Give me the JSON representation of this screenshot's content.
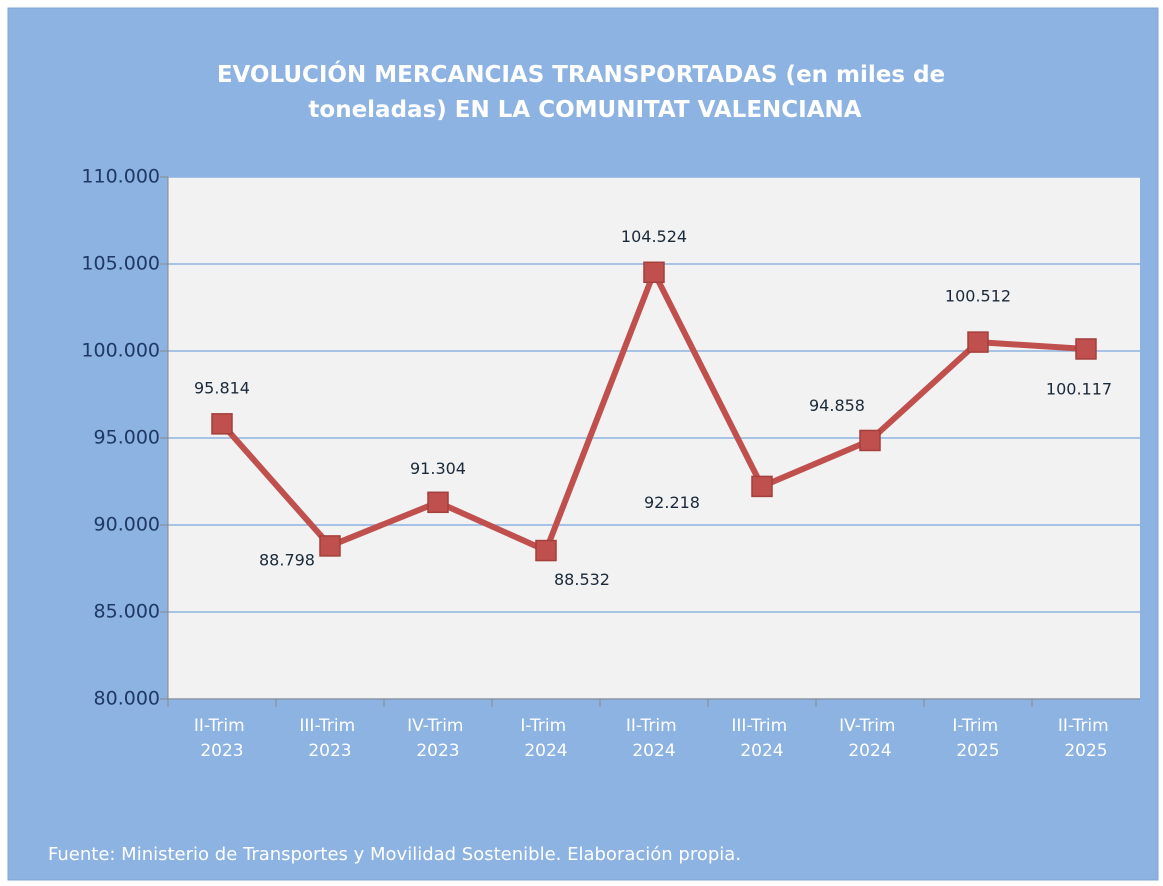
{
  "chart_data": {
    "type": "line",
    "title": "EVOLUCIÓN MERCANCIAS TRANSPORTADAS (en miles de toneladas) EN LA COMUNITAT VALENCIANA",
    "categories": [
      "II-Trim 2023",
      "III-Trim 2023",
      "IV-Trim 2023",
      "I-Trim 2024",
      "II-Trim 2024",
      "III-Trim 2024",
      "IV-Trim 2024",
      "I-Trim 2025",
      "II-Trim 2025"
    ],
    "series": [
      {
        "name": "Mercancías transportadas",
        "color": "#c0504d",
        "values": [
          95814,
          88798,
          91304,
          88532,
          104524,
          92218,
          94858,
          100512,
          100117
        ],
        "value_labels": [
          "95.814",
          "88.798",
          "91.304",
          "88.532",
          "104.524",
          "92.218",
          "94.858",
          "100.512",
          "100.117"
        ]
      }
    ],
    "ylim": [
      80000,
      110000
    ],
    "yticks": [
      {
        "value": 80000,
        "label": "80.000"
      },
      {
        "value": 85000,
        "label": "85.000"
      },
      {
        "value": 90000,
        "label": "90.000"
      },
      {
        "value": 95000,
        "label": "95.000"
      },
      {
        "value": 100000,
        "label": "100.000"
      },
      {
        "value": 105000,
        "label": "105.000"
      },
      {
        "value": 110000,
        "label": "110.000"
      }
    ],
    "grid": true,
    "source": "Fuente: Ministerio de  Transportes y Movilidad Sostenible. Elaboración propia."
  }
}
